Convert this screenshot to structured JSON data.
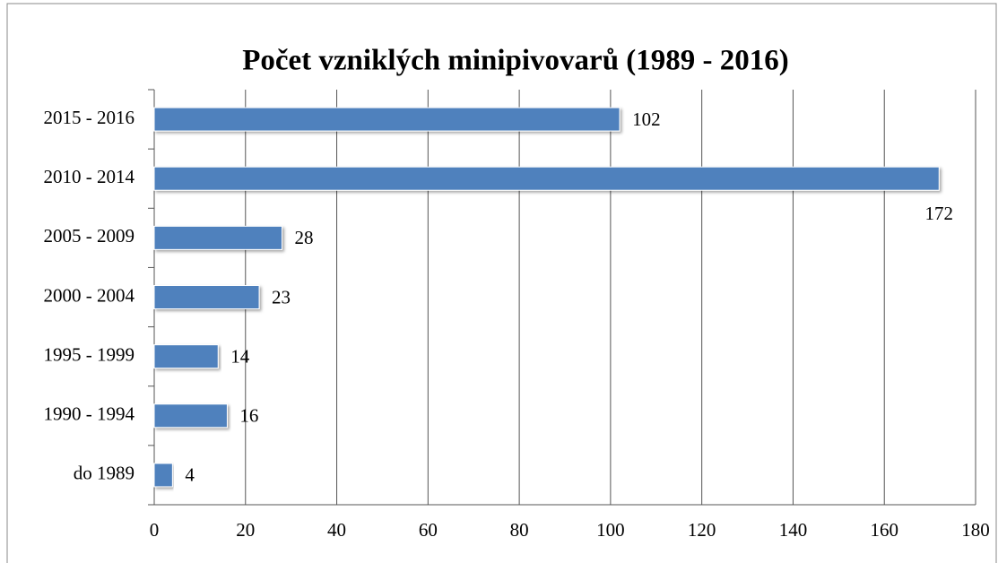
{
  "chart_data": {
    "type": "bar",
    "orientation": "horizontal",
    "title": "Počet vzniklých minipivovarů (1989 - 2016)",
    "categories": [
      "2015 - 2016",
      "2010 - 2014",
      "2005 - 2009",
      "2000 - 2004",
      "1995 - 1999",
      "1990 - 1994",
      "do 1989"
    ],
    "values": [
      102,
      172,
      28,
      23,
      14,
      16,
      4
    ],
    "color": "#4f81bd",
    "xlim": [
      0,
      180
    ],
    "xticks": [
      0,
      20,
      40,
      60,
      80,
      100,
      120,
      140,
      160,
      180
    ],
    "grid": true
  }
}
